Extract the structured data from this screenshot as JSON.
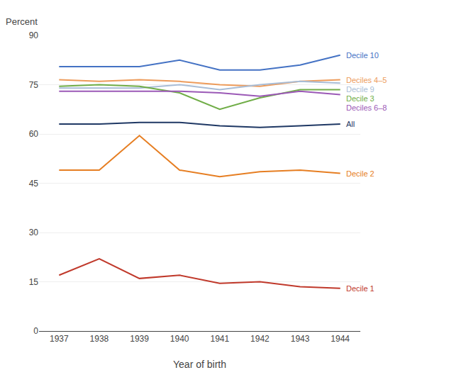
{
  "chart_data": {
    "type": "line",
    "xlabel": "Year of birth",
    "ylabel": "Percent",
    "x": [
      1937,
      1938,
      1939,
      1940,
      1941,
      1942,
      1943,
      1944
    ],
    "series": [
      {
        "name": "Decile 10",
        "color": "#4472C4",
        "values": [
          80.5,
          80.5,
          80.5,
          82.5,
          79.5,
          79.5,
          81.0,
          84.0
        ]
      },
      {
        "name": "Deciles 4–5",
        "color": "#ED9B5A",
        "values": [
          76.5,
          76.0,
          76.5,
          76.0,
          75.0,
          74.5,
          76.0,
          76.5
        ]
      },
      {
        "name": "Decile 9",
        "color": "#A9BDD6",
        "values": [
          74.0,
          74.0,
          74.0,
          75.0,
          73.5,
          75.0,
          76.0,
          75.5
        ]
      },
      {
        "name": "Decile 3",
        "color": "#70AD47",
        "values": [
          74.5,
          75.0,
          74.5,
          72.5,
          67.5,
          71.0,
          73.5,
          73.5
        ]
      },
      {
        "name": "Deciles 6–8",
        "color": "#9B59B6",
        "values": [
          73.0,
          73.0,
          73.0,
          73.0,
          72.5,
          71.5,
          73.0,
          72.0
        ]
      },
      {
        "name": "All",
        "color": "#1F3864",
        "values": [
          63.0,
          63.0,
          63.5,
          63.5,
          62.5,
          62.0,
          62.5,
          63.0
        ]
      },
      {
        "name": "Decile 2",
        "color": "#E67E22",
        "values": [
          49.0,
          49.0,
          59.5,
          49.0,
          47.0,
          48.5,
          49.0,
          48.0
        ]
      },
      {
        "name": "Decile 1",
        "color": "#C0392B",
        "values": [
          17.0,
          22.0,
          16.0,
          17.0,
          14.5,
          15.0,
          13.5,
          13.0
        ]
      }
    ],
    "xlim": [
      1936.5,
      1944.5
    ],
    "xticks": [
      1937,
      1938,
      1939,
      1940,
      1941,
      1942,
      1943,
      1944
    ],
    "ylim": [
      0,
      90
    ],
    "yticks": [
      0,
      15,
      30,
      45,
      60,
      75,
      90
    ],
    "grid": "y"
  }
}
